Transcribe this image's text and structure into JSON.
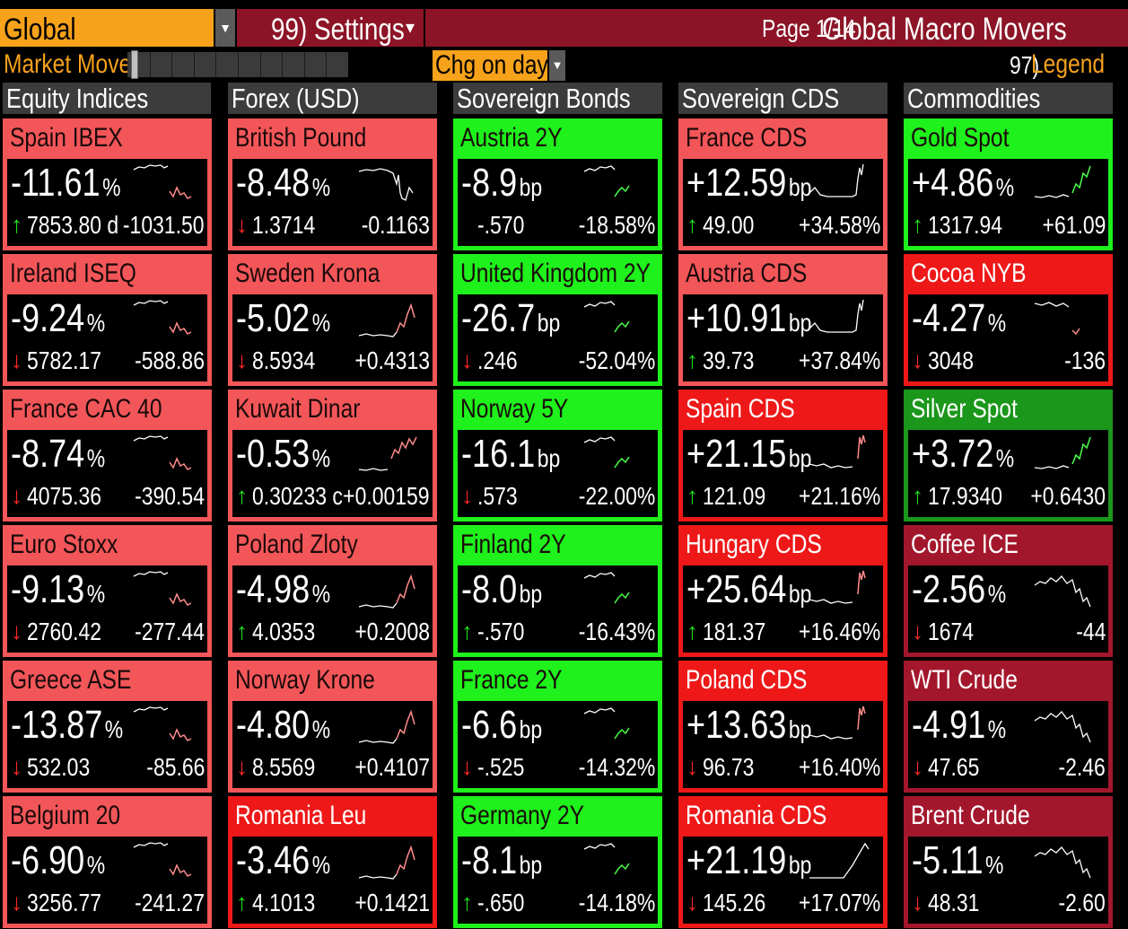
{
  "topbar": {
    "region": "Global",
    "settings_num": "99)",
    "settings_label": "Settings",
    "page": "Page 1/14",
    "title": "Global Macro Movers"
  },
  "controls": {
    "market_move_label": "Market Move",
    "change_mode": "Chg on day",
    "legend_num": "97)",
    "legend_label": "Legend"
  },
  "colors": {
    "orange": "#f7a21b",
    "header_red": "#8c1426",
    "light_red": "#f35659",
    "red": "#ee1818",
    "dark_red": "#a3172d",
    "light_green": "#1ef11b",
    "green": "#1b971b",
    "arrow_up": "#1ee01e",
    "arrow_down": "#ff2828"
  },
  "columns": [
    {
      "header": "Equity Indices",
      "tiles": [
        {
          "name": "Spain IBEX",
          "value": "-11.61",
          "unit": "%",
          "dir": "up",
          "level": "7853.80 d",
          "change": "-1031.50",
          "bg": "light_red",
          "trace_color": "#ff8b8b",
          "spark": "a"
        },
        {
          "name": "Ireland ISEQ",
          "value": "-9.24",
          "unit": "%",
          "dir": "down",
          "level": "5782.17",
          "change": "-588.86",
          "bg": "light_red",
          "trace_color": "#ff8b8b",
          "spark": "a"
        },
        {
          "name": "France CAC 40",
          "value": "-8.74",
          "unit": "%",
          "dir": "down",
          "level": "4075.36",
          "change": "-390.54",
          "bg": "light_red",
          "trace_color": "#ff8b8b",
          "spark": "a"
        },
        {
          "name": "Euro Stoxx",
          "value": "-9.13",
          "unit": "%",
          "dir": "down",
          "level": "2760.42",
          "change": "-277.44",
          "bg": "light_red",
          "trace_color": "#ff8b8b",
          "spark": "a"
        },
        {
          "name": "Greece ASE",
          "value": "-13.87",
          "unit": "%",
          "dir": "down",
          "level": "532.03",
          "change": "-85.66",
          "bg": "light_red",
          "trace_color": "#ff8b8b",
          "spark": "a"
        },
        {
          "name": "Belgium 20",
          "value": "-6.90",
          "unit": "%",
          "dir": "down",
          "level": "3256.77",
          "change": "-241.27",
          "bg": "light_red",
          "trace_color": "#ff8b8b",
          "spark": "a"
        }
      ]
    },
    {
      "header": "Forex (USD)",
      "tiles": [
        {
          "name": "British Pound",
          "value": "-8.48",
          "unit": "%",
          "dir": "down",
          "level": "1.3714",
          "change": "-0.1163",
          "bg": "light_red",
          "trace_color": "#ff8b8b",
          "spark": "b"
        },
        {
          "name": "Sweden Krona",
          "value": "-5.02",
          "unit": "%",
          "dir": "down",
          "level": "8.5934",
          "change": "+0.4313",
          "bg": "light_red",
          "trace_color": "#ff8b8b",
          "spark": "c"
        },
        {
          "name": "Kuwait Dinar",
          "value": "-0.53",
          "unit": "%",
          "dir": "up",
          "level": "0.30233 c",
          "change": "+0.00159",
          "bg": "light_red",
          "trace_color": "#ff8b8b",
          "spark": "d"
        },
        {
          "name": "Poland Zloty",
          "value": "-4.98",
          "unit": "%",
          "dir": "up",
          "level": "4.0353",
          "change": "+0.2008",
          "bg": "light_red",
          "trace_color": "#ff8b8b",
          "spark": "c"
        },
        {
          "name": "Norway Krone",
          "value": "-4.80",
          "unit": "%",
          "dir": "down",
          "level": "8.5569",
          "change": "+0.4107",
          "bg": "light_red",
          "trace_color": "#ff8b8b",
          "spark": "c"
        },
        {
          "name": "Romania Leu",
          "value": "-3.46",
          "unit": "%",
          "dir": "up",
          "level": "4.1013",
          "change": "+0.1421",
          "bg": "red",
          "trace_color": "#ff8b8b",
          "spark": "c"
        }
      ]
    },
    {
      "header": "Sovereign Bonds",
      "tiles": [
        {
          "name": "Austria 2Y",
          "value": "-8.9",
          "unit": "bp",
          "dir": "",
          "level": "-.570",
          "change": "-18.58%",
          "bg": "light_green",
          "trace_color": "#4cff4c",
          "spark": "e"
        },
        {
          "name": "United Kingdom 2Y",
          "value": "-26.7",
          "unit": "bp",
          "dir": "down",
          "level": ".246",
          "change": "-52.04%",
          "bg": "light_green",
          "trace_color": "#4cff4c",
          "spark": "e"
        },
        {
          "name": "Norway 5Y",
          "value": "-16.1",
          "unit": "bp",
          "dir": "down",
          "level": ".573",
          "change": "-22.00%",
          "bg": "light_green",
          "trace_color": "#4cff4c",
          "spark": "e"
        },
        {
          "name": "Finland 2Y",
          "value": "-8.0",
          "unit": "bp",
          "dir": "up",
          "level": "-.570",
          "change": "-16.43%",
          "bg": "light_green",
          "trace_color": "#4cff4c",
          "spark": "e"
        },
        {
          "name": "France 2Y",
          "value": "-6.6",
          "unit": "bp",
          "dir": "down",
          "level": "-.525",
          "change": "-14.32%",
          "bg": "light_green",
          "trace_color": "#4cff4c",
          "spark": "e"
        },
        {
          "name": "Germany 2Y",
          "value": "-8.1",
          "unit": "bp",
          "dir": "up",
          "level": "-.650",
          "change": "-14.18%",
          "bg": "light_green",
          "trace_color": "#4cff4c",
          "spark": "e"
        }
      ]
    },
    {
      "header": "Sovereign CDS",
      "tiles": [
        {
          "name": "France CDS",
          "value": "+12.59",
          "unit": "bp",
          "dir": "up",
          "level": "49.00",
          "change": "+34.58%",
          "bg": "light_red",
          "trace_color": "#ff8b8b",
          "spark": "f"
        },
        {
          "name": "Austria CDS",
          "value": "+10.91",
          "unit": "bp",
          "dir": "up",
          "level": "39.73",
          "change": "+37.84%",
          "bg": "light_red",
          "trace_color": "#ff8b8b",
          "spark": "f"
        },
        {
          "name": "Spain CDS",
          "value": "+21.15",
          "unit": "bp",
          "dir": "up",
          "level": "121.09",
          "change": "+21.16%",
          "bg": "red",
          "trace_color": "#ff8b8b",
          "spark": "g"
        },
        {
          "name": "Hungary CDS",
          "value": "+25.64",
          "unit": "bp",
          "dir": "up",
          "level": "181.37",
          "change": "+16.46%",
          "bg": "red",
          "trace_color": "#ff8b8b",
          "spark": "g"
        },
        {
          "name": "Poland CDS",
          "value": "+13.63",
          "unit": "bp",
          "dir": "down",
          "level": "96.73",
          "change": "+16.40%",
          "bg": "red",
          "trace_color": "#ff8b8b",
          "spark": "g"
        },
        {
          "name": "Romania CDS",
          "value": "+21.19",
          "unit": "bp",
          "dir": "down",
          "level": "145.26",
          "change": "+17.07%",
          "bg": "red",
          "trace_color": "#ff8b8b",
          "spark": "h"
        }
      ]
    },
    {
      "header": "Commodities",
      "tiles": [
        {
          "name": "Gold Spot",
          "value": "+4.86",
          "unit": "%",
          "dir": "up",
          "level": "1317.94",
          "change": "+61.09",
          "bg": "light_green",
          "trace_color": "#4cff4c",
          "spark": "i"
        },
        {
          "name": "Cocoa NYB",
          "value": "-4.27",
          "unit": "%",
          "dir": "down",
          "level": "3048",
          "change": "-136",
          "bg": "red",
          "trace_color": "#ff8b8b",
          "spark": "j"
        },
        {
          "name": "Silver Spot",
          "value": "+3.72",
          "unit": "%",
          "dir": "up",
          "level": "17.9340",
          "change": "+0.6430",
          "bg": "green",
          "trace_color": "#4cff4c",
          "spark": "i"
        },
        {
          "name": "Coffee ICE",
          "value": "-2.56",
          "unit": "%",
          "dir": "down",
          "level": "1674",
          "change": "-44",
          "bg": "dark_red",
          "trace_color": "#ff8b8b",
          "spark": "k"
        },
        {
          "name": "WTI Crude",
          "value": "-4.91",
          "unit": "%",
          "dir": "down",
          "level": "47.65",
          "change": "-2.46",
          "bg": "dark_red",
          "trace_color": "#ff8b8b",
          "spark": "k"
        },
        {
          "name": "Brent Crude",
          "value": "-5.11",
          "unit": "%",
          "dir": "down",
          "level": "48.31",
          "change": "-2.60",
          "bg": "dark_red",
          "trace_color": "#ff8b8b",
          "spark": "k"
        }
      ]
    }
  ]
}
